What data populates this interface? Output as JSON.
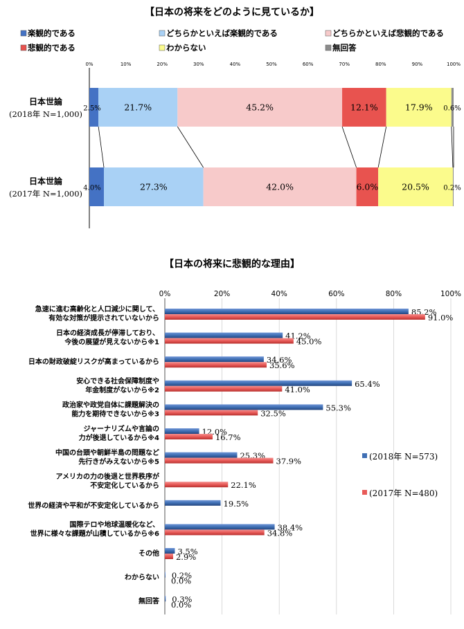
{
  "chart_data": [
    {
      "type": "bar",
      "stacked": true,
      "orientation": "horizontal",
      "title": "【日本の将来をどのように見ているか】",
      "xlim": [
        0,
        100
      ],
      "x_ticks": [
        "0%",
        "10%",
        "20%",
        "30%",
        "40%",
        "50%",
        "60%",
        "70%",
        "80%",
        "90%",
        "100%"
      ],
      "categories": [
        {
          "line1": "日本世論",
          "line2": "(2018年 N=1,000)"
        },
        {
          "line1": "日本世論",
          "line2": "(2017年 N=1,000)"
        }
      ],
      "series": [
        {
          "name": "楽観的である",
          "color": "#4472c4",
          "values": [
            2.5,
            4.0
          ],
          "labels": [
            "2.5%",
            "4.0%"
          ]
        },
        {
          "name": "どちらかといえば楽観的である",
          "color": "#a9d1f5",
          "values": [
            21.7,
            27.3
          ],
          "labels": [
            "21.7%",
            "27.3%"
          ]
        },
        {
          "name": "どちらかといえば悲観的である",
          "color": "#f7caca",
          "values": [
            45.2,
            42.0
          ],
          "labels": [
            "45.2%",
            "42.0%"
          ]
        },
        {
          "name": "悲観的である",
          "color": "#e8534f",
          "values": [
            12.1,
            6.0
          ],
          "labels": [
            "12.1%",
            "6.0%"
          ]
        },
        {
          "name": "わからない",
          "color": "#fbfb8c",
          "values": [
            17.9,
            20.5
          ],
          "labels": [
            "17.9%",
            "20.5%"
          ]
        },
        {
          "name": "無回答",
          "color": "#8c8c8c",
          "values": [
            0.6,
            0.2
          ],
          "labels": [
            "0.6%",
            "0.2%"
          ]
        }
      ],
      "legend_position": "top"
    },
    {
      "type": "bar",
      "orientation": "horizontal",
      "title": "【日本の将来に悲観的な理由】",
      "xlim": [
        0,
        100
      ],
      "x_ticks": [
        "0%",
        "20%",
        "40%",
        "60%",
        "80%",
        "100%"
      ],
      "categories": [
        [
          "急速に進む高齢化と人口減少に関して、",
          "有効な対策が提示されていないから"
        ],
        [
          "日本の経済成長が停滞しており、",
          "今後の展望が見えないから※1"
        ],
        [
          "日本の財政破綻リスクが高まっているから"
        ],
        [
          "安心できる社会保障制度や",
          "年金制度がないから※2"
        ],
        [
          "政治家や政党自体に課題解決の",
          "能力を期待できないから※3"
        ],
        [
          "ジャーナリズムや言論の",
          "力が後退しているから※4"
        ],
        [
          "中国の台頭や朝鮮半島の問題など",
          "先行きがみえないから※5"
        ],
        [
          "アメリカの力の後退と世界秩序が",
          "不安定化しているから"
        ],
        [
          "世界の経済や平和が不安定化しているから"
        ],
        [
          "国際テロや地球温暖化など、",
          "世界に様々な課題が山積しているから※6"
        ],
        [
          "その他"
        ],
        [
          "わからない"
        ],
        [
          "無回答"
        ]
      ],
      "series": [
        {
          "name": "(2018年 N=573)",
          "color": "#3f6fb4",
          "values": [
            85.2,
            41.2,
            34.6,
            65.4,
            55.3,
            12.0,
            25.3,
            null,
            19.5,
            38.4,
            3.5,
            0.2,
            0.3
          ],
          "labels": [
            "85.2%",
            "41.2%",
            "34.6%",
            "65.4%",
            "55.3%",
            "12.0%",
            "25.3%",
            null,
            "19.5%",
            "38.4%",
            "3.5%",
            "0.2%",
            "0.3%"
          ]
        },
        {
          "name": "(2017年 N=480)",
          "color": "#e85a58",
          "values": [
            91.0,
            45.0,
            35.6,
            41.0,
            32.5,
            16.7,
            37.9,
            22.1,
            null,
            34.8,
            2.9,
            0.0,
            0.0
          ],
          "labels": [
            "91.0%",
            "45.0%",
            "35.6%",
            "41.0%",
            "32.5%",
            "16.7%",
            "37.9%",
            "22.1%",
            null,
            "34.8%",
            "2.9%",
            "0.0%",
            "0.0%"
          ]
        }
      ],
      "legend_position": "right"
    }
  ]
}
